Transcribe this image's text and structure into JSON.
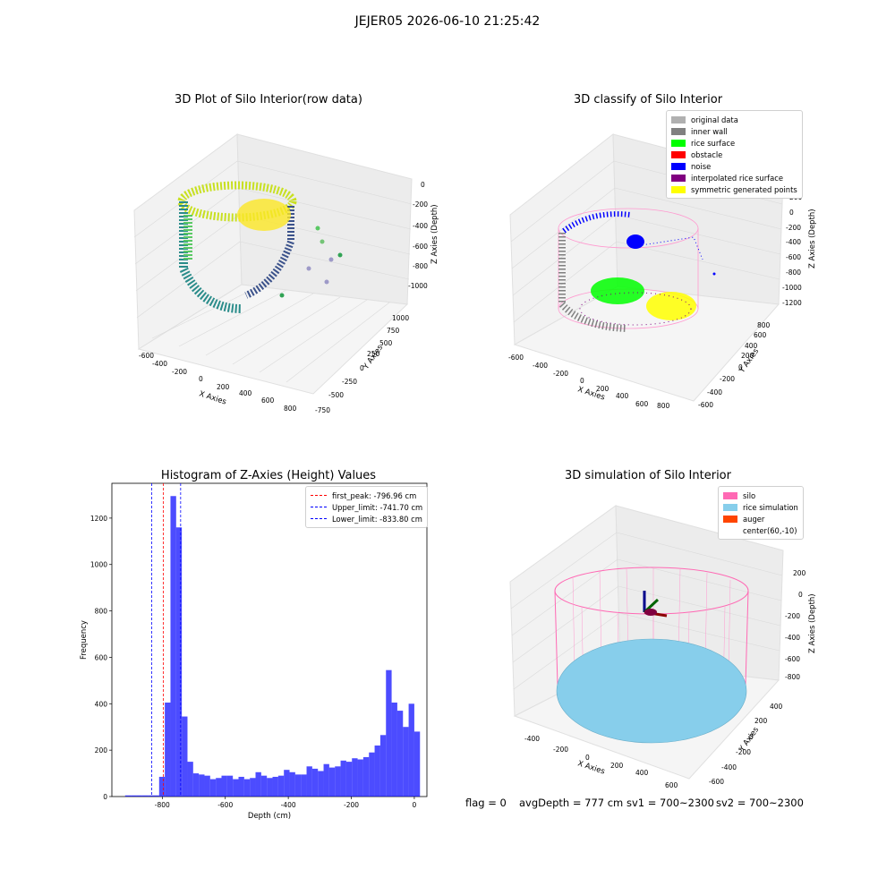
{
  "suptitle": "JEJER05 2026-06-10 21:25:42",
  "plot1": {
    "title": "3D Plot of Silo Interior(row data)",
    "xlabel": "X Axies",
    "ylabel": "Y Axies",
    "zlabel": "Z Axies (Depth)",
    "xticks": [
      "-600",
      "-400",
      "-200",
      "0",
      "200",
      "400",
      "600",
      "800"
    ],
    "yticks": [
      "-750",
      "-500",
      "-250",
      "0",
      "250",
      "500",
      "750",
      "1000"
    ],
    "zticks": [
      "0",
      "-200",
      "-400",
      "-600",
      "-800",
      "-1000"
    ]
  },
  "plot2": {
    "title": "3D classify of Silo Interior",
    "xlabel": "X Axies",
    "ylabel": "Y Axies",
    "zlabel": "Z Axies (Depth)",
    "xticks": [
      "-600",
      "-400",
      "-200",
      "0",
      "200",
      "400",
      "600",
      "800"
    ],
    "yticks": [
      "-600",
      "-400",
      "-200",
      "0",
      "200",
      "400",
      "600",
      "800"
    ],
    "zticks": [
      "400",
      "200",
      "0",
      "-200",
      "-400",
      "-600",
      "-800",
      "-1000",
      "-1200"
    ],
    "legend": [
      {
        "label": "original data",
        "color": "#b0b0b0"
      },
      {
        "label": "inner wall",
        "color": "#808080"
      },
      {
        "label": "rice surface",
        "color": "#00ff00"
      },
      {
        "label": "obstacle",
        "color": "#ff0000"
      },
      {
        "label": "noise",
        "color": "#0000ff"
      },
      {
        "label": "interpolated rice surface",
        "color": "#800080"
      },
      {
        "label": "symmetric generated points",
        "color": "#ffff00"
      }
    ]
  },
  "plot4": {
    "title": "3D simulation of Silo Interior",
    "xlabel": "X Axies",
    "ylabel": "Y Axies",
    "zlabel": "Z Axies (Depth)",
    "xticks": [
      "-400",
      "-200",
      "0",
      "200",
      "400",
      "600"
    ],
    "yticks": [
      "-600",
      "-400",
      "-200",
      "0",
      "200",
      "400"
    ],
    "zticks": [
      "200",
      "0",
      "-200",
      "-400",
      "-600",
      "-800"
    ],
    "legend": [
      {
        "label": "silo",
        "color": "#ff69b4"
      },
      {
        "label": "rice simulation",
        "color": "#87ceeb"
      },
      {
        "label": "auger",
        "color": "#ff4500"
      },
      {
        "label": "center(60,-10)",
        "color": ""
      }
    ]
  },
  "status": {
    "flag": "flag = 0",
    "avg": "avgDepth = 777 cm",
    "sv1": "sv1 = 700~2300",
    "sv2": "sv2 = 700~2300"
  },
  "chart_data": [
    {
      "type": "bar",
      "title": "Histogram of Z-Axies (Height) Values",
      "xlabel": "Depth (cm)",
      "ylabel": "Frequency",
      "xlim": [
        -960,
        40
      ],
      "ylim": [
        0,
        1350
      ],
      "xticks": [
        -800,
        -600,
        -400,
        -200,
        0
      ],
      "yticks": [
        0,
        200,
        400,
        600,
        800,
        1000,
        1200
      ],
      "bin_width": 18,
      "bin_start": -918,
      "values": [
        5,
        5,
        5,
        5,
        5,
        5,
        85,
        405,
        1295,
        1160,
        345,
        150,
        100,
        95,
        90,
        75,
        80,
        90,
        90,
        75,
        85,
        75,
        80,
        105,
        90,
        80,
        85,
        90,
        115,
        105,
        95,
        95,
        130,
        120,
        110,
        140,
        125,
        130,
        155,
        150,
        165,
        160,
        170,
        190,
        220,
        265,
        545,
        405,
        370,
        300,
        400,
        280
      ],
      "color": "#0000ff",
      "vlines": [
        {
          "name": "first_peak: -796.96 cm",
          "x": -796.96,
          "color": "#ff0000"
        },
        {
          "name": "Upper_limit: -741.70 cm",
          "x": -741.7,
          "color": "#0000ff"
        },
        {
          "name": "Lower_limit: -833.80 cm",
          "x": -833.8,
          "color": "#0000ff"
        }
      ]
    }
  ]
}
